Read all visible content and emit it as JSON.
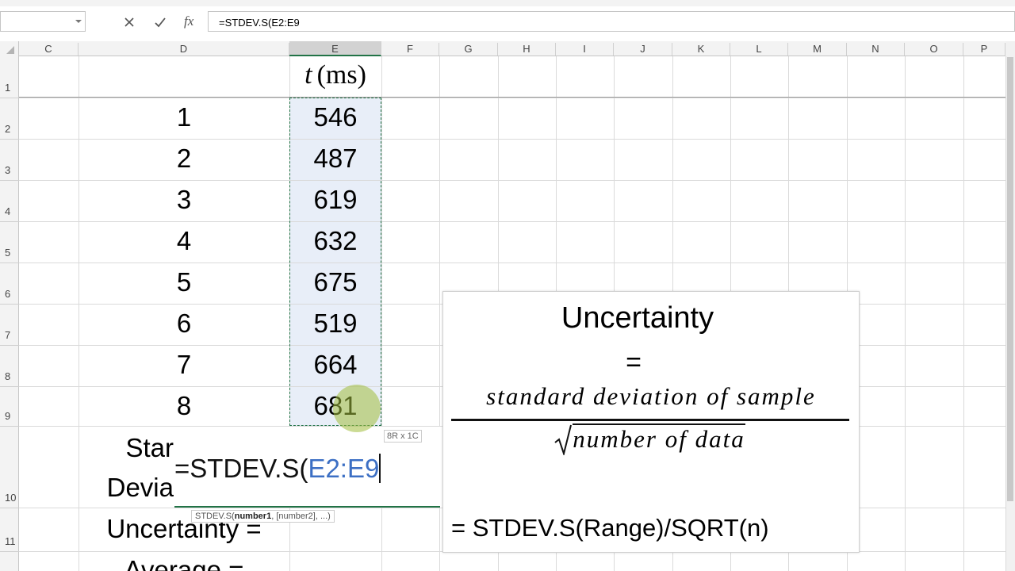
{
  "formula_bar": {
    "name_box": "",
    "function_icon": "fx",
    "formula": "=STDEV.S(E2:E9"
  },
  "columns": [
    "C",
    "D",
    "E",
    "F",
    "G",
    "H",
    "I",
    "J",
    "K",
    "L",
    "M",
    "N",
    "O",
    "P"
  ],
  "row_numbers": [
    "1",
    "2",
    "3",
    "4",
    "5",
    "6",
    "7",
    "8",
    "9",
    "10",
    "11"
  ],
  "header": {
    "variable": "t",
    "unit": "(ms)"
  },
  "data_rows": [
    {
      "index": 1,
      "t": 546
    },
    {
      "index": 2,
      "t": 487
    },
    {
      "index": 3,
      "t": 619
    },
    {
      "index": 4,
      "t": 632
    },
    {
      "index": 5,
      "t": 675
    },
    {
      "index": 6,
      "t": 519
    },
    {
      "index": 7,
      "t": 664
    },
    {
      "index": 8,
      "t": 681
    }
  ],
  "labels": {
    "std_line1": "Star",
    "std_line2": "Devia",
    "uncertainty": "Uncertainty =",
    "average": "Average ="
  },
  "editing": {
    "prefix": "=STDEV.S(",
    "range": "E2:E9"
  },
  "range_tooltip": "8R x 1C",
  "function_tooltip": {
    "name": "STDEV.S(",
    "arg1": "number1",
    "rest": ", [number2], ...)"
  },
  "note_box": {
    "title": "Uncertainty",
    "equals": "=",
    "numerator": "standard deviation of sample",
    "denominator": "number of data",
    "formula": "= STDEV.S(Range)/SQRT(n)"
  }
}
